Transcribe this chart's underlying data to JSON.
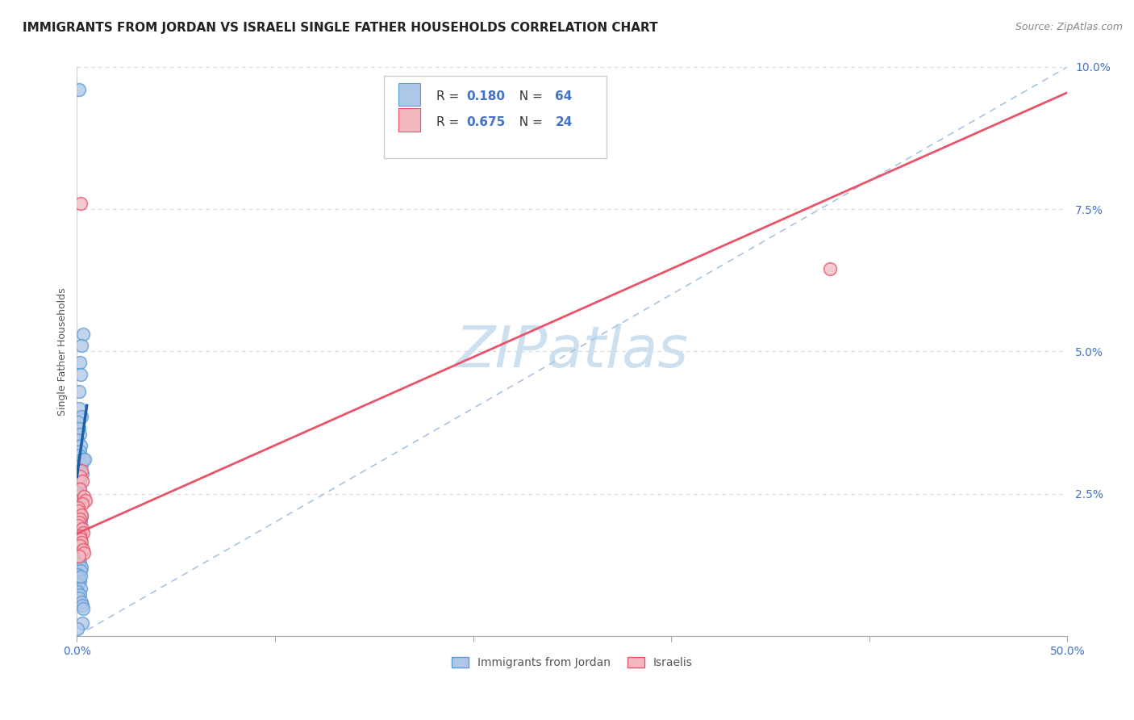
{
  "title": "IMMIGRANTS FROM JORDAN VS ISRAELI SINGLE FATHER HOUSEHOLDS CORRELATION CHART",
  "source": "Source: ZipAtlas.com",
  "ylabel": "Single Father Households",
  "x_min": 0.0,
  "x_max": 0.5,
  "y_min": 0.0,
  "y_max": 0.1,
  "x_ticks": [
    0.0,
    0.1,
    0.2,
    0.3,
    0.4,
    0.5
  ],
  "x_tick_labels": [
    "0.0%",
    "",
    "",
    "",
    "",
    "50.0%"
  ],
  "y_ticks": [
    0.0,
    0.025,
    0.05,
    0.075,
    0.1
  ],
  "y_tick_labels": [
    "",
    "2.5%",
    "5.0%",
    "7.5%",
    "10.0%"
  ],
  "watermark": "ZIPatlas",
  "blue_color": "#5b9bd5",
  "blue_light": "#aec6e8",
  "pink_color": "#e8546a",
  "pink_light": "#f4b8c1",
  "diagonal_line_color": "#aac4e0",
  "grid_color": "#d8d8d8",
  "title_fontsize": 11,
  "axis_label_fontsize": 9,
  "tick_fontsize": 10,
  "watermark_fontsize": 52,
  "watermark_color": "#cde0f0",
  "blue_scatter": [
    [
      0.001,
      0.096
    ],
    [
      0.0032,
      0.053
    ],
    [
      0.0025,
      0.051
    ],
    [
      0.0015,
      0.048
    ],
    [
      0.002,
      0.046
    ],
    [
      0.0012,
      0.043
    ],
    [
      0.001,
      0.04
    ],
    [
      0.0022,
      0.0385
    ],
    [
      0.0007,
      0.0375
    ],
    [
      0.0009,
      0.0365
    ],
    [
      0.0016,
      0.0355
    ],
    [
      0.0004,
      0.0345
    ],
    [
      0.0018,
      0.0335
    ],
    [
      0.0013,
      0.0325
    ],
    [
      0.0009,
      0.0318
    ],
    [
      0.0007,
      0.0308
    ],
    [
      0.0023,
      0.0302
    ],
    [
      0.0004,
      0.0296
    ],
    [
      0.0011,
      0.029
    ],
    [
      0.0028,
      0.0285
    ],
    [
      0.0007,
      0.0278
    ],
    [
      0.0014,
      0.0272
    ],
    [
      0.0002,
      0.0265
    ],
    [
      0.0009,
      0.0258
    ],
    [
      0.0004,
      0.0252
    ],
    [
      0.0016,
      0.0246
    ],
    [
      0.002,
      0.024
    ],
    [
      0.0011,
      0.0234
    ],
    [
      0.0007,
      0.0228
    ],
    [
      0.0004,
      0.0222
    ],
    [
      0.0014,
      0.0216
    ],
    [
      0.0023,
      0.021
    ],
    [
      0.0009,
      0.0204
    ],
    [
      0.0018,
      0.0198
    ],
    [
      0.0002,
      0.0192
    ],
    [
      0.0007,
      0.0186
    ],
    [
      0.0016,
      0.018
    ],
    [
      0.0011,
      0.0174
    ],
    [
      0.0004,
      0.0168
    ],
    [
      0.002,
      0.0162
    ],
    [
      0.0009,
      0.0156
    ],
    [
      0.0014,
      0.015
    ],
    [
      0.0007,
      0.0144
    ],
    [
      0.0002,
      0.0138
    ],
    [
      0.0016,
      0.0132
    ],
    [
      0.0011,
      0.0126
    ],
    [
      0.0023,
      0.012
    ],
    [
      0.0018,
      0.0114
    ],
    [
      0.0004,
      0.0108
    ],
    [
      0.0009,
      0.0102
    ],
    [
      0.0014,
      0.0096
    ],
    [
      0.0007,
      0.009
    ],
    [
      0.002,
      0.0084
    ],
    [
      0.0002,
      0.0078
    ],
    [
      0.0016,
      0.0072
    ],
    [
      0.0011,
      0.0066
    ],
    [
      0.0023,
      0.006
    ],
    [
      0.0028,
      0.0054
    ],
    [
      0.0032,
      0.0048
    ],
    [
      0.0032,
      0.031
    ],
    [
      0.0038,
      0.031
    ],
    [
      0.0026,
      0.0022
    ],
    [
      0.0004,
      0.0012
    ],
    [
      0.002,
      0.0105
    ]
  ],
  "pink_scatter": [
    [
      0.0018,
      0.076
    ],
    [
      0.0022,
      0.029
    ],
    [
      0.0016,
      0.028
    ],
    [
      0.0026,
      0.0272
    ],
    [
      0.0013,
      0.0258
    ],
    [
      0.0036,
      0.0245
    ],
    [
      0.0042,
      0.0238
    ],
    [
      0.0029,
      0.0232
    ],
    [
      0.0008,
      0.0226
    ],
    [
      0.0005,
      0.022
    ],
    [
      0.0021,
      0.0212
    ],
    [
      0.0016,
      0.0206
    ],
    [
      0.0011,
      0.02
    ],
    [
      0.0008,
      0.0194
    ],
    [
      0.0026,
      0.0188
    ],
    [
      0.0031,
      0.0182
    ],
    [
      0.0013,
      0.0176
    ],
    [
      0.0018,
      0.017
    ],
    [
      0.0023,
      0.0164
    ],
    [
      0.0016,
      0.0158
    ],
    [
      0.0031,
      0.0152
    ],
    [
      0.0036,
      0.0146
    ],
    [
      0.0011,
      0.014
    ],
    [
      0.38,
      0.0645
    ]
  ],
  "blue_line_x": [
    0.0,
    0.005
  ],
  "blue_line_intercept": 0.028,
  "blue_line_slope": 2.5,
  "pink_line_intercept": 0.018,
  "pink_line_slope": 0.155
}
